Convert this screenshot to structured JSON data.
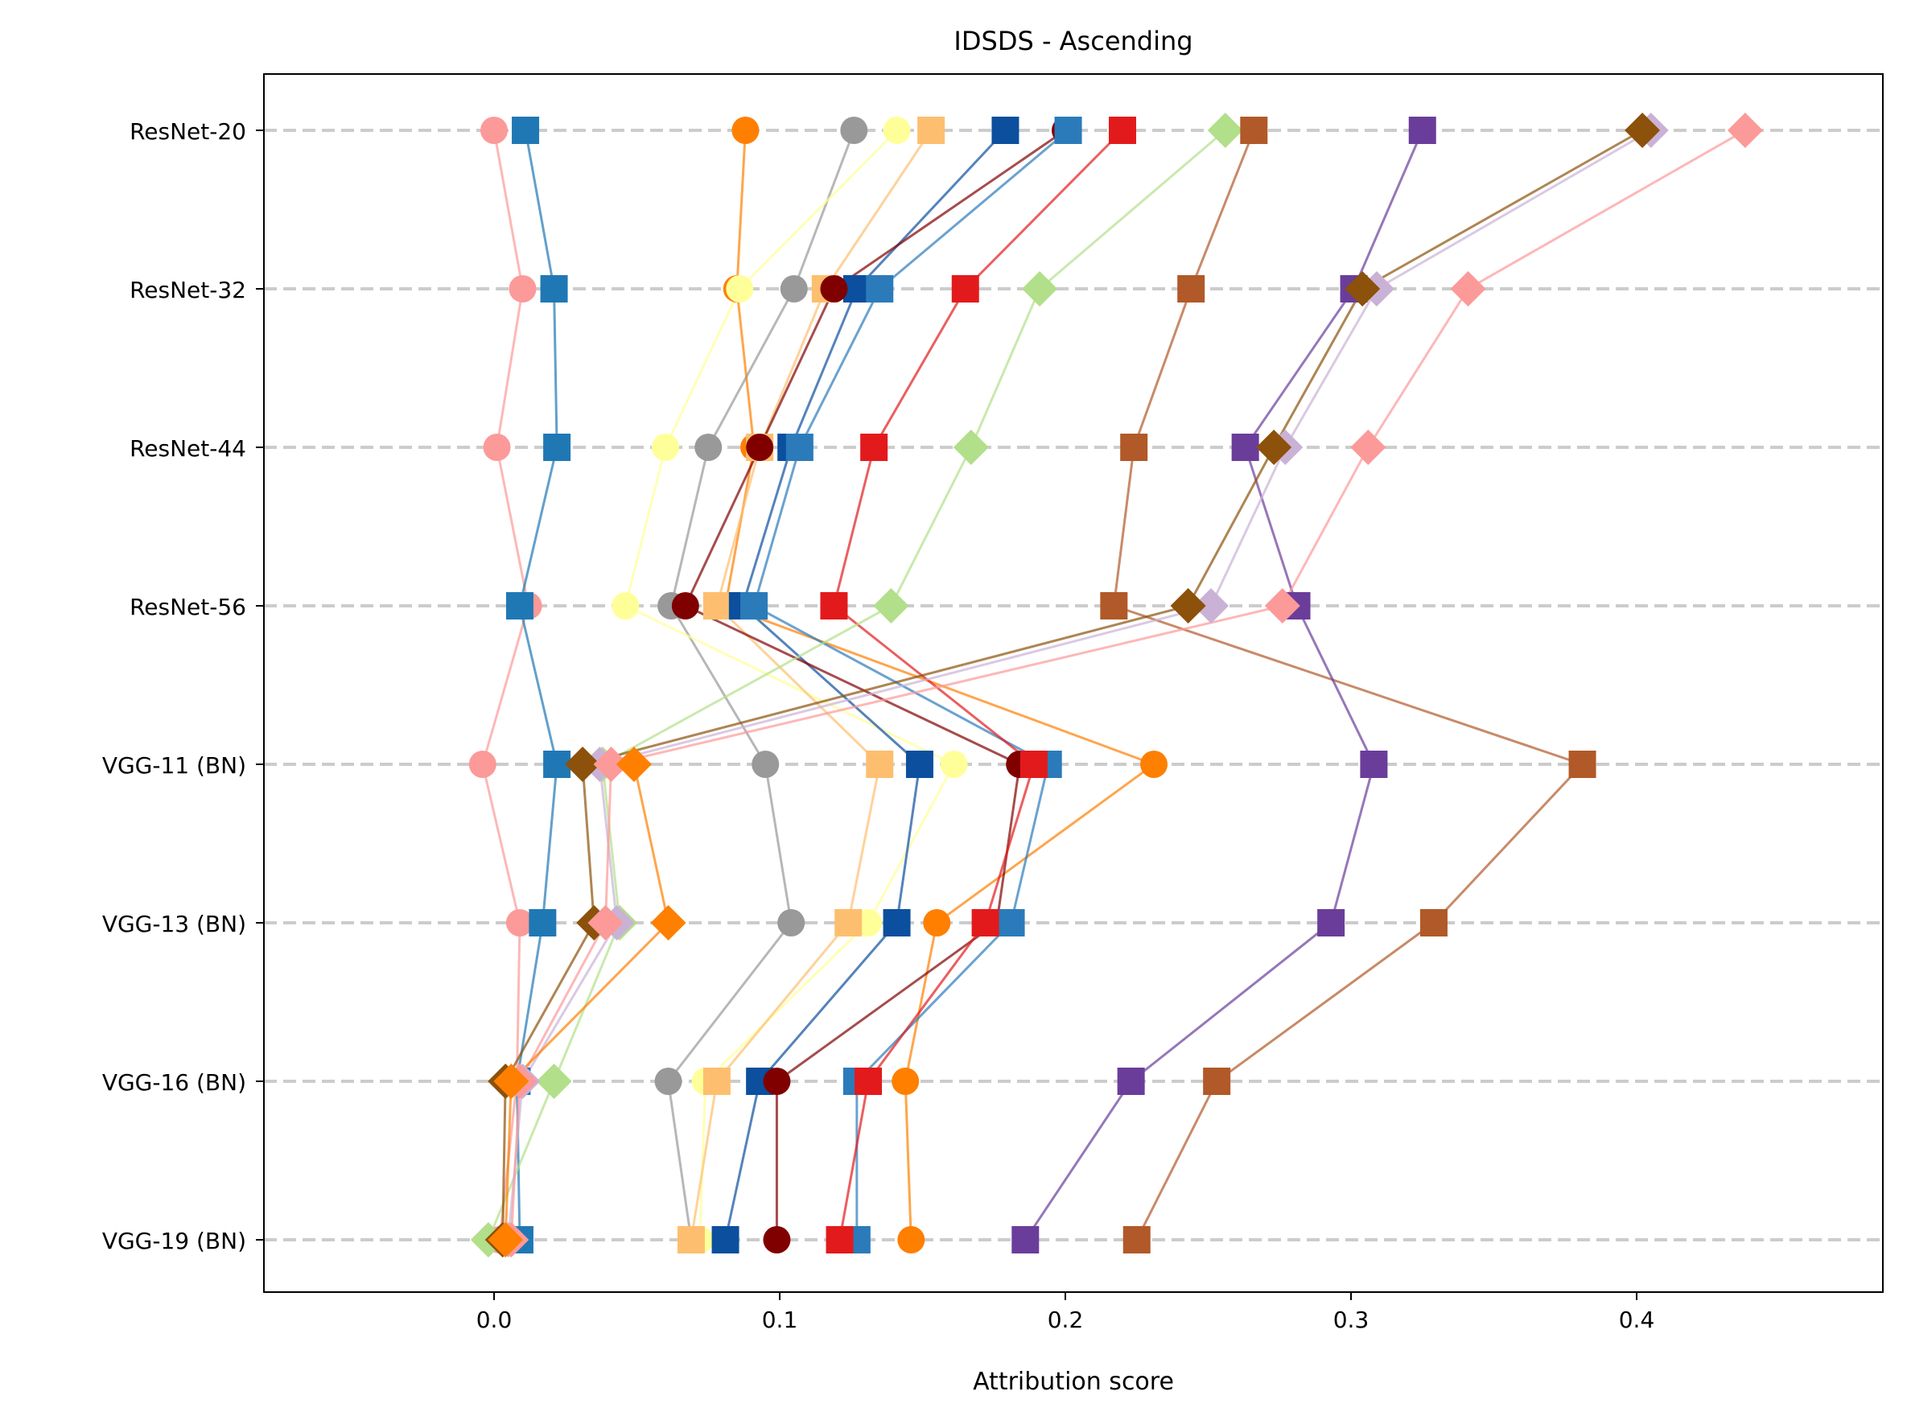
{
  "chart_data": {
    "type": "scatter",
    "title": "IDSDS - Ascending",
    "xlabel": "Attribution score",
    "ylabel": "",
    "xlim": [
      -0.081,
      0.487
    ],
    "xticks": [
      "0.0",
      "0.1",
      "0.2",
      "0.3",
      "0.4"
    ],
    "xtick_values": [
      0.0,
      0.1,
      0.2,
      0.3,
      0.4
    ],
    "categories": [
      "ResNet-20",
      "ResNet-32",
      "ResNet-44",
      "ResNet-56",
      "VGG-11 (BN)",
      "VGG-13 (BN)",
      "VGG-16 (BN)",
      "VGG-19 (BN)"
    ],
    "grid": "horizontal dashed",
    "series": [
      {
        "color": "#fb9a99",
        "marker": "circle",
        "values": [
          0.0,
          0.01,
          0.001,
          0.012,
          -0.004,
          0.009,
          0.008,
          0.002
        ]
      },
      {
        "color": "#1f78b4",
        "marker": "square",
        "values": [
          0.011,
          0.021,
          0.022,
          0.009,
          0.022,
          0.017,
          0.008,
          0.009
        ]
      },
      {
        "color": "#ff7f00",
        "marker": "circle",
        "values": [
          0.088,
          0.085,
          0.091,
          0.081,
          0.231,
          0.155,
          0.144,
          0.146
        ]
      },
      {
        "color": "#999999",
        "marker": "circle",
        "values": [
          0.126,
          0.105,
          0.075,
          0.062,
          0.095,
          0.104,
          0.061,
          0.069
        ]
      },
      {
        "color": "#ffff99",
        "marker": "circle",
        "values": [
          0.141,
          0.086,
          0.06,
          0.046,
          0.161,
          0.131,
          0.074,
          0.072
        ]
      },
      {
        "color": "#fdbf6f",
        "marker": "square",
        "values": [
          0.153,
          0.116,
          0.093,
          0.078,
          0.135,
          0.124,
          0.078,
          0.069
        ]
      },
      {
        "color": "#0b4f9e",
        "marker": "square",
        "values": [
          0.179,
          0.127,
          0.104,
          0.087,
          0.149,
          0.141,
          0.093,
          0.081
        ]
      },
      {
        "color": "#800000",
        "marker": "circle",
        "values": [
          0.2,
          0.119,
          0.093,
          0.067,
          0.184,
          0.176,
          0.099,
          0.099
        ]
      },
      {
        "color": "#2b7bba",
        "marker": "square",
        "values": [
          0.201,
          0.135,
          0.107,
          0.091,
          0.194,
          0.181,
          0.127,
          0.127
        ]
      },
      {
        "color": "#e31a1c",
        "marker": "square",
        "values": [
          0.22,
          0.165,
          0.133,
          0.119,
          0.189,
          0.172,
          0.131,
          0.121
        ]
      },
      {
        "color": "#b2df8a",
        "marker": "diamond",
        "values": [
          0.256,
          0.191,
          0.167,
          0.139,
          0.038,
          0.044,
          0.021,
          -0.002
        ]
      },
      {
        "color": "#b15928",
        "marker": "square",
        "values": [
          0.266,
          0.244,
          0.224,
          0.217,
          0.381,
          0.329,
          0.253,
          0.225
        ]
      },
      {
        "color": "#6a3d9a",
        "marker": "square",
        "values": [
          0.325,
          0.301,
          0.263,
          0.281,
          0.308,
          0.293,
          0.223,
          0.186
        ]
      },
      {
        "color": "#cab2d6",
        "marker": "diamond",
        "values": [
          0.405,
          0.309,
          0.277,
          0.251,
          0.037,
          0.043,
          0.01,
          0.005
        ]
      },
      {
        "color": "#8c510a",
        "marker": "diamond",
        "values": [
          0.402,
          0.304,
          0.273,
          0.243,
          0.031,
          0.035,
          0.004,
          0.003
        ]
      },
      {
        "color": "#fb9a99",
        "marker": "diamond",
        "values": [
          0.438,
          0.341,
          0.306,
          0.276,
          0.041,
          0.039,
          0.009,
          0.006
        ]
      },
      {
        "color": "#ff7f00",
        "marker": "diamond",
        "values": [
          null,
          null,
          null,
          null,
          0.049,
          0.061,
          0.006,
          0.004
        ]
      }
    ]
  }
}
